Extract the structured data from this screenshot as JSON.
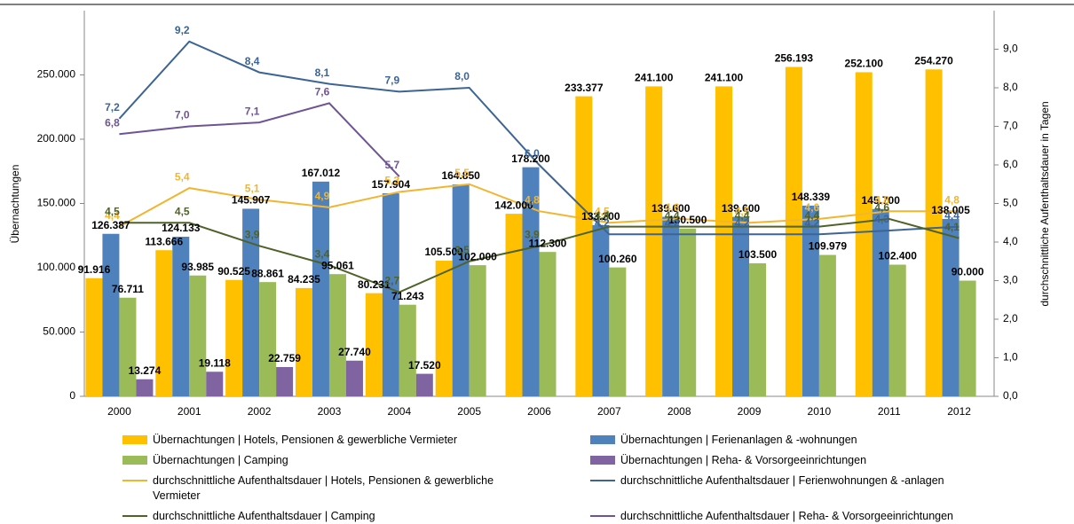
{
  "chart_data": {
    "type": "bar",
    "categories": [
      "2000",
      "2001",
      "2002",
      "2003",
      "2004",
      "2005",
      "2006",
      "2007",
      "2008",
      "2009",
      "2010",
      "2011",
      "2012"
    ],
    "ylabel": "Übernachtungen",
    "y2label": "durchschnittliche Aufenthaltsdauer in Tagen",
    "ylim": [
      0,
      300000
    ],
    "yticks": [
      0,
      {
        "value": 50000,
        "label": "50.000"
      },
      {
        "value": 100000,
        "label": "100.000"
      },
      {
        "value": 150000,
        "label": "150.000"
      },
      {
        "value": 200000,
        "label": "200.000"
      },
      {
        "value": 250000,
        "label": "250.000"
      }
    ],
    "y2lim": [
      0,
      10
    ],
    "y2ticks": [
      {
        "value": 0,
        "label": "0,0"
      },
      {
        "value": 1,
        "label": "1,0"
      },
      {
        "value": 2,
        "label": "2,0"
      },
      {
        "value": 3,
        "label": "3,0"
      },
      {
        "value": 4,
        "label": "4,0"
      },
      {
        "value": 5,
        "label": "5,0"
      },
      {
        "value": 6,
        "label": "6,0"
      },
      {
        "value": 7,
        "label": "7,0"
      },
      {
        "value": 8,
        "label": "8,0"
      },
      {
        "value": 9,
        "label": "9,0"
      }
    ],
    "series": [
      {
        "name": "Übernachtungen | Hotels, Pensionen & gewerbliche Vermieter",
        "type": "bar",
        "color": "#FFC000",
        "values": [
          91916,
          113666,
          90525,
          84235,
          80231,
          105500,
          142000,
          233377,
          241100,
          241100,
          256193,
          252100,
          254270
        ],
        "value_labels": [
          "91.916",
          "113.666",
          "90.525",
          "84.235",
          "80.231",
          "105.500",
          "142.000",
          "233.377",
          "241.100",
          "241.100",
          "256.193",
          "252.100",
          "254.270"
        ]
      },
      {
        "name": "Übernachtungen | Ferienanlagen & -wohnungen",
        "type": "bar",
        "color": "#4F81BD",
        "values": [
          126387,
          124133,
          145907,
          167012,
          157904,
          164850,
          178200,
          133200,
          139600,
          139600,
          148339,
          145700,
          138005
        ],
        "value_labels": [
          "126.387",
          "124.133",
          "145.907",
          "167.012",
          "157.904",
          "164.850",
          "178.200",
          "133.200",
          "139.600",
          "139.600",
          "148.339",
          "145.700",
          "138.005"
        ]
      },
      {
        "name": "Übernachtungen | Camping",
        "type": "bar",
        "color": "#9BBB59",
        "values": [
          76711,
          93985,
          88861,
          95061,
          71243,
          102000,
          112300,
          100260,
          130500,
          103500,
          109979,
          102400,
          90000
        ],
        "value_labels": [
          "76.711",
          "93.985",
          "88.861",
          "95.061",
          "71.243",
          "102.000",
          "112.300",
          "100.260",
          "130.500",
          "103.500",
          "109.979",
          "102.400",
          "90.000"
        ]
      },
      {
        "name": "Übernachtungen | Reha- & Vorsorgeeinrichtungen",
        "type": "bar",
        "color": "#8064A2",
        "values": [
          13274,
          19118,
          22759,
          27740,
          17520,
          null,
          null,
          null,
          null,
          null,
          null,
          null,
          null
        ],
        "value_labels": [
          "13.274",
          "19.118",
          "22.759",
          "27.740",
          "17.520",
          null,
          null,
          null,
          null,
          null,
          null,
          null,
          null
        ]
      },
      {
        "name": "durchschnittliche Aufenthaltsdauer | Hotels, Pensionen & gewerbliche Vermieter",
        "type": "line",
        "axis": "y2",
        "color": "#F2B530",
        "values": [
          4.4,
          5.4,
          5.1,
          4.9,
          5.3,
          5.5,
          4.8,
          4.5,
          4.6,
          4.5,
          4.6,
          4.8,
          4.8
        ],
        "value_labels": [
          "4,4",
          "5,4",
          "5,1",
          "4,9",
          "5,3",
          "5,5",
          "4,8",
          "4,5",
          "4,6",
          "4,5",
          "4,6",
          "4,8",
          "4,8"
        ]
      },
      {
        "name": "durchschnittliche Aufenthaltsdauer | Ferienwohnungen & -anlagen",
        "type": "line",
        "axis": "y2",
        "color": "#3C6494",
        "values": [
          7.2,
          9.2,
          8.4,
          8.1,
          7.9,
          8.0,
          6.0,
          4.2,
          4.2,
          4.2,
          4.2,
          4.3,
          4.4
        ],
        "value_labels": [
          "7,2",
          "9,2",
          "8,4",
          "8,1",
          "7,9",
          "8,0",
          "6,0",
          "4,2",
          "4,2",
          "4,2",
          "4,2",
          "4,3",
          "4,4"
        ]
      },
      {
        "name": "durchschnittliche Aufenthaltsdauer | Camping",
        "type": "line",
        "axis": "y2",
        "color": "#4F6228",
        "values": [
          4.5,
          4.5,
          3.9,
          3.4,
          2.7,
          3.5,
          3.9,
          4.4,
          4.4,
          4.4,
          4.4,
          4.6,
          4.1
        ],
        "value_labels": [
          "4,5",
          "4,5",
          "3,9",
          "3,4",
          "2,7",
          "3,5",
          "3,9",
          "4,4",
          "4,4",
          "4,4",
          "4,4",
          "4,6",
          "4,1"
        ]
      },
      {
        "name": "durchschnittliche Aufenthaltsdauer | Reha- & Vorsorgeeinrichtungen",
        "type": "line",
        "axis": "y2",
        "color": "#6E5494",
        "values": [
          6.8,
          7.0,
          7.1,
          7.6,
          5.7,
          null,
          null,
          null,
          null,
          null,
          null,
          null,
          null
        ],
        "value_labels": [
          "6,8",
          "7,0",
          "7,1",
          "7,6",
          "5,7",
          null,
          null,
          null,
          null,
          null,
          null,
          null,
          null
        ]
      }
    ]
  }
}
